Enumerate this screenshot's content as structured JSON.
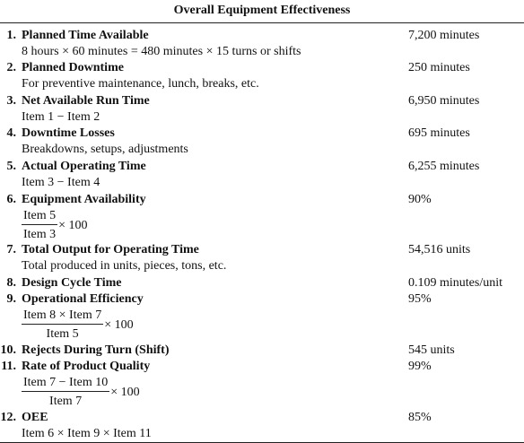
{
  "title": "Overall Equipment Effectiveness",
  "items": [
    {
      "number": "1.",
      "title": "Planned Time Available",
      "value": "7,200 minutes",
      "description": "8 hours × 60 minutes = 480 minutes × 15 turns or shifts"
    },
    {
      "number": "2.",
      "title": "Planned Downtime",
      "value": "250 minutes",
      "description": "For preventive maintenance, lunch, breaks, etc."
    },
    {
      "number": "3.",
      "title": "Net Available Run Time",
      "value": "6,950 minutes",
      "description": "Item 1 − Item 2"
    },
    {
      "number": "4.",
      "title": "Downtime Losses",
      "value": "695 minutes",
      "description": "Breakdowns, setups, adjustments"
    },
    {
      "number": "5.",
      "title": "Actual Operating Time",
      "value": "6,255 minutes",
      "description": "Item 3 − Item 4"
    },
    {
      "number": "6.",
      "title": "Equipment Availability",
      "value": "90%",
      "formula": {
        "numerator": "Item 5",
        "denominator": "Item 3",
        "multiplier": "× 100"
      }
    },
    {
      "number": "7.",
      "title": "Total Output for Operating Time",
      "value": "54,516 units",
      "description": "Total produced in units, pieces, tons, etc."
    },
    {
      "number": "8.",
      "title": "Design Cycle Time",
      "value": "0.109 minutes/unit"
    },
    {
      "number": "9.",
      "title": "Operational Efficiency",
      "value": "95%",
      "formula": {
        "numerator": "Item 8 × Item 7",
        "denominator": "Item 5",
        "multiplier": "× 100"
      }
    },
    {
      "number": "10.",
      "title": "Rejects During Turn (Shift)",
      "value": "545 units"
    },
    {
      "number": "11.",
      "title": "Rate of Product Quality",
      "value": "99%",
      "formula": {
        "numerator": "Item 7 − Item 10",
        "denominator": "Item 7",
        "multiplier": "× 100"
      }
    },
    {
      "number": "12.",
      "title": "OEE",
      "value": "85%",
      "description": "Item 6 × Item 9 × Item 11"
    }
  ]
}
